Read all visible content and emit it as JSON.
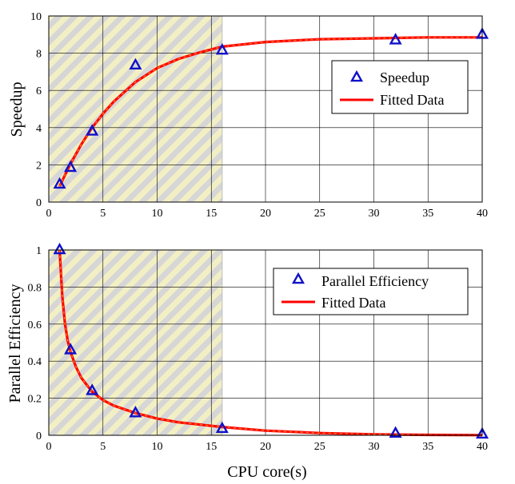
{
  "figure": {
    "xlabel": "CPU core(s)"
  },
  "colors": {
    "marker": "#1010c8",
    "fit_line": "#ff0000",
    "fit_line_core": "#ff8c1a",
    "hatch_stripe": "#f2efc4",
    "hatch_bg": "#d6d6d6",
    "grid": "#000000"
  },
  "chart_data": [
    {
      "type": "line",
      "xlabel": "",
      "ylabel": "Speedup",
      "xlim": [
        0,
        40
      ],
      "ylim": [
        0,
        10
      ],
      "xticks": [
        0,
        5,
        10,
        15,
        20,
        25,
        30,
        35,
        40
      ],
      "yticks": [
        0,
        2,
        4,
        6,
        8,
        10
      ],
      "grid": true,
      "legend_position": "center-right",
      "shaded_region": {
        "x_from": 0,
        "x_to": 16,
        "style": "hatched"
      },
      "series": [
        {
          "name": "Speedup",
          "style": "triangle-markers",
          "x": [
            1,
            2,
            4,
            8,
            16,
            32,
            40
          ],
          "y": [
            0.95,
            1.85,
            3.8,
            7.35,
            8.15,
            8.7,
            9.0
          ]
        },
        {
          "name": "Fitted Data",
          "style": "line",
          "x": [
            1,
            2,
            3,
            4,
            5,
            6,
            8,
            10,
            12,
            14,
            16,
            20,
            25,
            30,
            35,
            40
          ],
          "y": [
            0.85,
            2.05,
            3.1,
            4.0,
            4.75,
            5.4,
            6.45,
            7.2,
            7.7,
            8.05,
            8.35,
            8.6,
            8.75,
            8.8,
            8.85,
            8.85
          ]
        }
      ]
    },
    {
      "type": "line",
      "xlabel": "CPU core(s)",
      "ylabel": "Parallel Efficiency",
      "xlim": [
        0,
        40
      ],
      "ylim": [
        0,
        1
      ],
      "xticks": [
        0,
        5,
        10,
        15,
        20,
        25,
        30,
        35,
        40
      ],
      "yticks": [
        0,
        0.2,
        0.4,
        0.6,
        0.8,
        1
      ],
      "grid": true,
      "legend_position": "top-right",
      "shaded_region": {
        "x_from": 0,
        "x_to": 16,
        "style": "hatched"
      },
      "series": [
        {
          "name": "Parallel Efficiency",
          "style": "triangle-markers",
          "x": [
            1,
            2,
            4,
            8,
            16,
            32,
            40
          ],
          "y": [
            1.0,
            0.46,
            0.24,
            0.12,
            0.035,
            0.01,
            0.005
          ]
        },
        {
          "name": "Fitted Data",
          "style": "line",
          "x": [
            1,
            1.25,
            1.5,
            1.75,
            2,
            2.5,
            3,
            4,
            5,
            6,
            8,
            10,
            12,
            16,
            20,
            25,
            30,
            35,
            40
          ],
          "y": [
            1.0,
            0.75,
            0.6,
            0.51,
            0.45,
            0.37,
            0.31,
            0.235,
            0.19,
            0.16,
            0.12,
            0.09,
            0.07,
            0.045,
            0.025,
            0.012,
            0.005,
            0.002,
            0.001
          ]
        }
      ]
    }
  ]
}
